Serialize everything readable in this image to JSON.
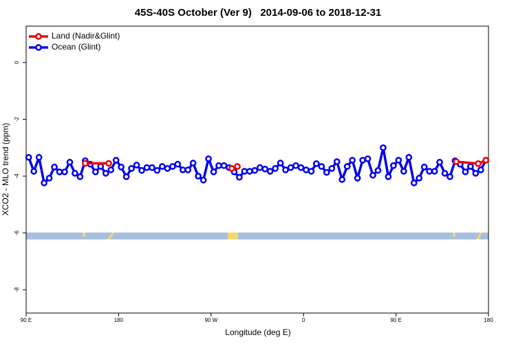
{
  "chart_data": {
    "type": "line",
    "title": "45S-40S October (Ver 9)   2014-09-06 to 2018-12-31",
    "xlabel": "Longitude (deg E)",
    "ylabel": "XCO2 - MLO trend (ppm)",
    "xlim": [
      90,
      540
    ],
    "xticks": [
      {
        "value": 90,
        "label": "90 E"
      },
      180,
      {
        "value": 270,
        "label": "90 W"
      },
      {
        "value": 360,
        "label": "0"
      },
      {
        "value": 450,
        "label": "90 E"
      },
      {
        "value": 540,
        "label": "180"
      }
    ],
    "ylim": [
      -8.82,
      1.28
    ],
    "yticks": [
      0,
      -2,
      -4,
      -6,
      -8
    ],
    "legend": "upper left",
    "series": [
      {
        "name": "Ocean (Glint)",
        "color": "#0000ee",
        "x": [
          92.5,
          97.5,
          102.5,
          107.5,
          112.5,
          117.5,
          122.5,
          127.5,
          132.5,
          137.5,
          142.5,
          147.5,
          152.5,
          157.5,
          162.5,
          167.5,
          172.5,
          177.5,
          182.5,
          187.5,
          192.5,
          197.5,
          202.5,
          207.5,
          212.5,
          217.5,
          222.5,
          227.5,
          232.5,
          237.5,
          242.5,
          247.5,
          252.5,
          257.5,
          262.5,
          267.5,
          272.5,
          277.5,
          282.5,
          287.5,
          292.5,
          297.5,
          302.5,
          307.5,
          312.5,
          317.5,
          322.5,
          327.5,
          332.5,
          337.5,
          342.5,
          347.5,
          352.5,
          357.5,
          362.5,
          367.5,
          372.5,
          377.5,
          382.5,
          387.5,
          392.5,
          397.5,
          402.5,
          407.5,
          412.5,
          417.5,
          422.5,
          427.5,
          432.5,
          437.5,
          442.5,
          447.5,
          452.5,
          457.5,
          462.5,
          467.5,
          472.5,
          477.5,
          482.5,
          487.5,
          492.5,
          497.5,
          502.5,
          507.5,
          512.5,
          517.5,
          522.5,
          527.5,
          532.5,
          537.5
        ],
        "values": [
          -3.34,
          -3.83,
          -3.34,
          -4.24,
          -4.07,
          -3.68,
          -3.85,
          -3.85,
          -3.51,
          -3.9,
          -4.02,
          -3.46,
          -3.58,
          -3.85,
          -3.66,
          -3.9,
          -3.78,
          -3.44,
          -3.68,
          -4.02,
          -3.73,
          -3.61,
          -3.8,
          -3.7,
          -3.7,
          -3.8,
          -3.66,
          -3.73,
          -3.66,
          -3.58,
          -3.78,
          -3.78,
          -3.54,
          -4.0,
          -4.14,
          -3.39,
          -3.85,
          -3.63,
          -3.63,
          -3.7,
          -3.85,
          -4.04,
          -3.83,
          -3.83,
          -3.8,
          -3.7,
          -3.75,
          -3.83,
          -3.73,
          -3.54,
          -3.78,
          -3.7,
          -3.63,
          -3.7,
          -3.78,
          -3.83,
          -3.56,
          -3.66,
          -3.87,
          -3.73,
          -3.49,
          -4.12,
          -3.66,
          -3.44,
          -4.07,
          -3.44,
          -3.39,
          -3.97,
          -3.8,
          -3.0,
          -4.02,
          -3.63,
          -3.44,
          -3.83,
          -3.34,
          -4.24,
          -4.07,
          -3.68,
          -3.83,
          -3.83,
          -3.51,
          -3.9,
          -4.02,
          -3.46,
          -3.58,
          -3.85,
          -3.66,
          -3.9,
          -3.78,
          -3.44
        ]
      },
      {
        "name": "Land (Nadir&Glint)",
        "color": "#ee0000",
        "x": [
          147.5,
          170.4,
          230,
          290.2,
          295.6,
          450,
          508.5,
          530,
          537.5
        ],
        "values": [
          -3.55,
          -3.55,
          null,
          -3.73,
          -3.66,
          null,
          -3.49,
          -3.56,
          -3.44
        ]
      }
    ]
  }
}
